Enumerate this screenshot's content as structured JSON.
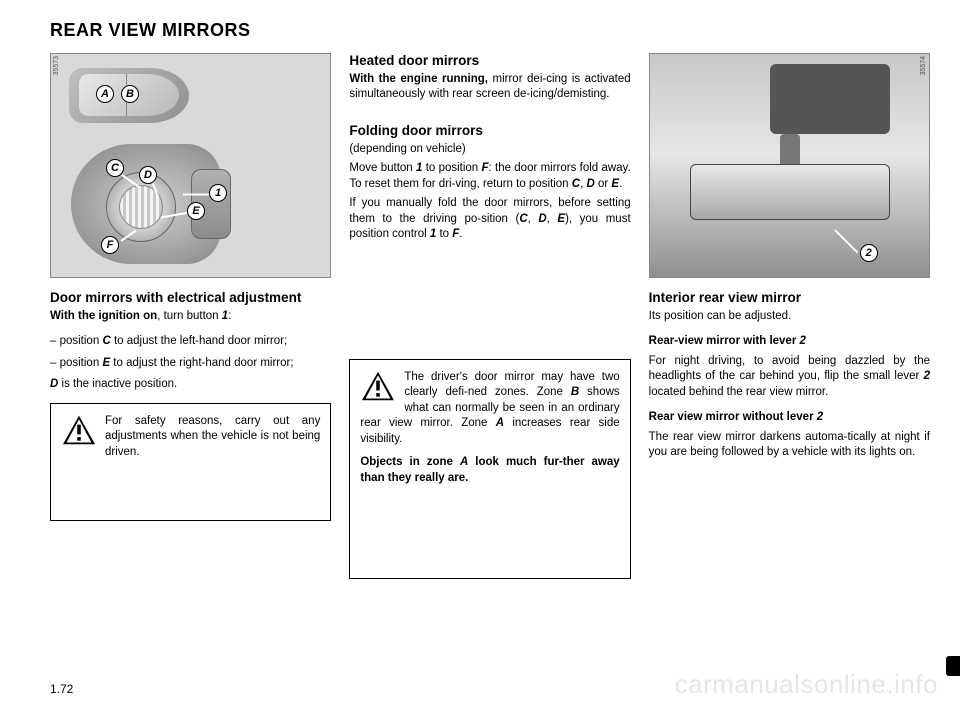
{
  "title": "REAR VIEW MIRRORS",
  "page_number": "1.72",
  "watermark": "carmanualsonline.info",
  "fig1": {
    "image_number": "35573",
    "A": "A",
    "B": "B",
    "C": "C",
    "D": "D",
    "E": "E",
    "F": "F",
    "n1": "1"
  },
  "fig2": {
    "image_number": "35574",
    "n2": "2"
  },
  "col1": {
    "heading": "Door mirrors with electrical adjustment",
    "lead_bold": "With the ignition on",
    "lead_rest": ", turn button ",
    "lead_ref": "1",
    "lead_end": ":",
    "li1_a": "–  position ",
    "li1_b": "C",
    "li1_c": " to adjust the left-hand door mirror;",
    "li2_a": "–  position ",
    "li2_b": "E",
    "li2_c": " to adjust the right-hand door mirror;",
    "p3_a": "D",
    "p3_b": " is the inactive position.",
    "warn": "For safety reasons, carry out any adjustments when the vehicle is not being driven."
  },
  "col2": {
    "h_heated": "Heated door mirrors",
    "p_heated_bold": "With the engine running,",
    "p_heated_rest": " mirror dei-cing is activated simultaneously with rear screen de-icing/demisting.",
    "h_fold": "Folding door mirrors",
    "p_fold_dep": "(depending on vehicle)",
    "p_fold_main": "Move button <b><i>1</i></b> to position <b><i>F</i></b>: the door mirrors fold away. To reset them for dri-ving, return to position <b><i>C</i></b>, <b><i>D</i></b> or <b><i>E</i></b>.",
    "p_fold_manual": "If you manually fold the door mirrors, before setting them to the driving po-sition (<b><i>C</i></b>, <b><i>D</i></b>, <b><i>E</i></b>), you must position control <b><i>1</i></b> to <b><i>F</i></b>.",
    "warn_p1": "The driver's door mirror may have two clearly defi-ned zones. Zone <b><i>B</i></b> shows what can normally be seen in an ordinary rear view mirror. Zone <b><i>A</i></b> increases rear side visibility.",
    "warn_p2": "Objects in zone <i>A</i> look much fur-ther away than they really are."
  },
  "col3": {
    "h_interior": "Interior rear view mirror",
    "p_interior": "Its position can be adjusted.",
    "h_lever": "Rear-view mirror with lever <i>2</i>",
    "p_lever": "For night driving, to avoid being dazzled by the headlights of the car behind you, flip the small lever <b><i>2</i></b> located behind the rear view mirror.",
    "h_nolever": "Rear view mirror without lever <i>2</i>",
    "p_nolever": "The rear view mirror darkens automa-tically at night if you are being followed by a vehicle with its lights on."
  }
}
